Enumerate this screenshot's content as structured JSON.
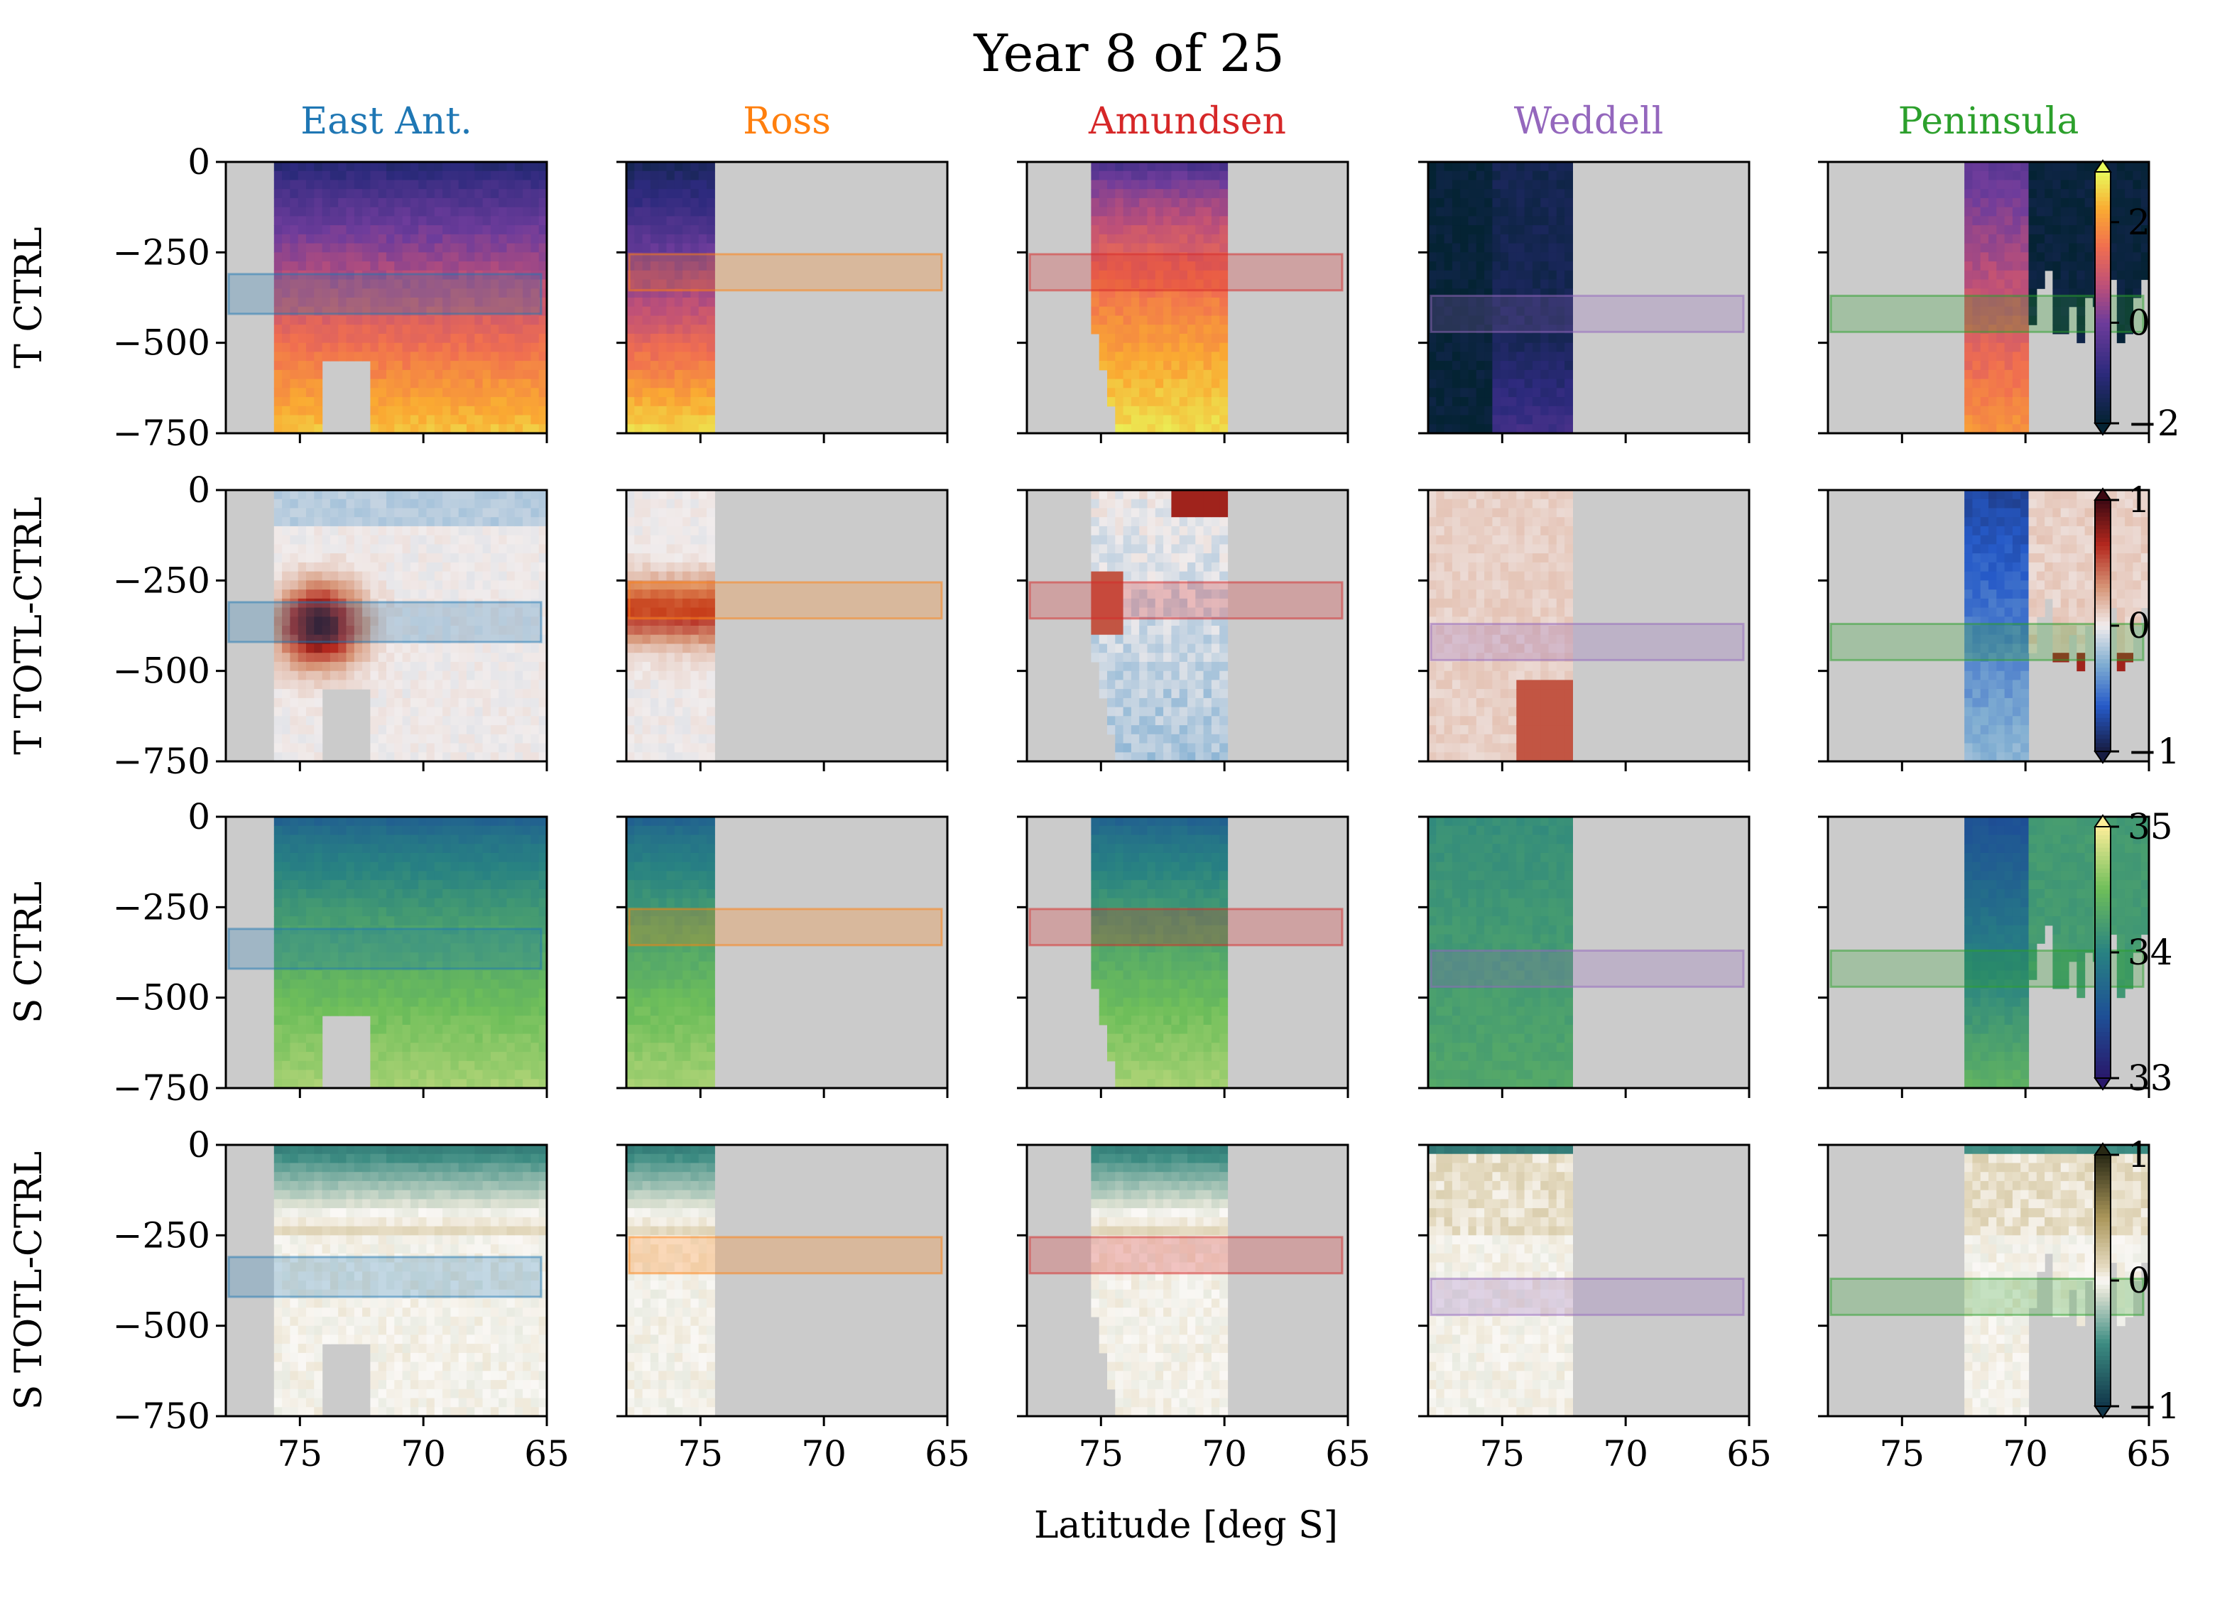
{
  "chart_data": {
    "type": "heatmap",
    "title": "Year 8 of 25",
    "xlabel": "Latitude [deg S]",
    "x_ticks": [
      "75",
      "70",
      "65"
    ],
    "y_ticks": [
      "0",
      "−250",
      "−500",
      "−750"
    ],
    "xlim": [
      78,
      65
    ],
    "ylim": [
      -750,
      0
    ],
    "regions": [
      {
        "name": "East Ant.",
        "color": "#1f77b4",
        "lat_range": [
          76,
          65
        ],
        "band_depth": [
          -310,
          -420
        ]
      },
      {
        "name": "Ross",
        "color": "#ff7f0e",
        "lat_range": [
          78,
          74.5
        ],
        "band_depth": [
          -255,
          -355
        ]
      },
      {
        "name": "Amundsen",
        "color": "#d62728",
        "lat_range": [
          75.5,
          70
        ],
        "band_depth": [
          -255,
          -355
        ]
      },
      {
        "name": "Weddell",
        "color": "#9467bd",
        "lat_range": [
          78,
          72
        ],
        "band_depth": [
          -370,
          -470
        ]
      },
      {
        "name": "Peninsula",
        "color": "#2ca02c",
        "lat_range": [
          72.5,
          65
        ],
        "band_depth": [
          -370,
          -470
        ]
      }
    ],
    "rows": [
      {
        "label": "T CTRL",
        "colorbar_ticks": [
          "2",
          "0",
          "−2"
        ],
        "range": [
          -2,
          3
        ],
        "colormap": "thermal"
      },
      {
        "label": "T TOTL-CTRL",
        "colorbar_ticks": [
          "1",
          "0",
          "−1"
        ],
        "range": [
          -1,
          1
        ],
        "colormap": "balance"
      },
      {
        "label": "S CTRL",
        "colorbar_ticks": [
          "35",
          "34",
          "33"
        ],
        "range": [
          33,
          35
        ],
        "colormap": "haline"
      },
      {
        "label": "S TOTL-CTRL",
        "colorbar_ticks": [
          "1",
          "0",
          "−1"
        ],
        "range": [
          -1,
          1
        ],
        "colormap": "tarn"
      }
    ]
  }
}
